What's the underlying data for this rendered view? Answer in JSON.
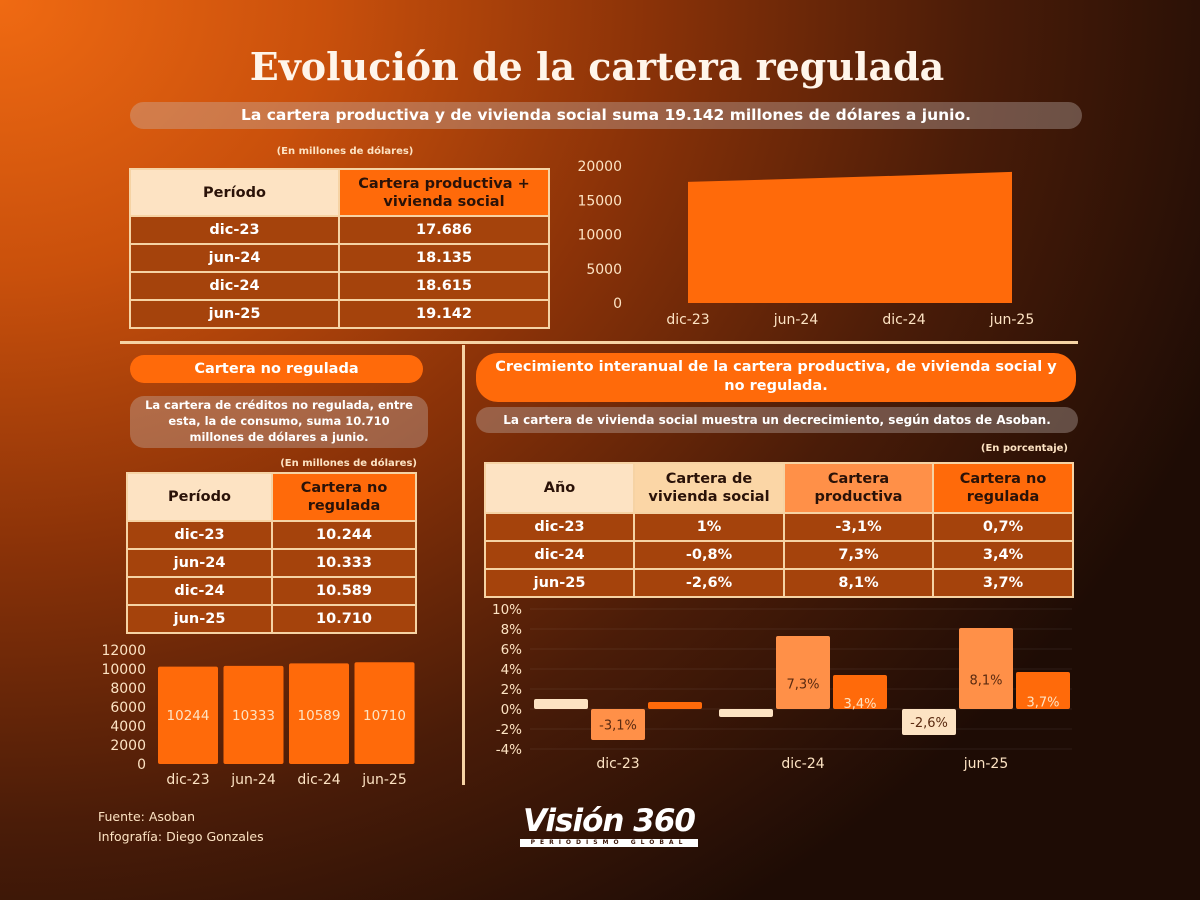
{
  "title": "Evolución de la cartera regulada",
  "subtitle": "La cartera productiva y de vivienda social suma 19.142 millones de dólares a junio.",
  "table1": {
    "note": "(En millones de dólares)",
    "headers": [
      "Período",
      "Cartera productiva + vivienda social"
    ],
    "rows": [
      [
        "dic-23",
        "17.686"
      ],
      [
        "jun-24",
        "18.135"
      ],
      [
        "dic-24",
        "18.615"
      ],
      [
        "jun-25",
        "19.142"
      ]
    ]
  },
  "no_regulada": {
    "pill": "Cartera no regulada",
    "text": "La cartera de créditos no regulada, entre esta, la de consumo, suma 10.710 millones de dólares a  junio.",
    "note": "(En millones de dólares)",
    "headers": [
      "Período",
      "Cartera no regulada"
    ],
    "rows": [
      [
        "dic-23",
        "10.244"
      ],
      [
        "jun-24",
        "10.333"
      ],
      [
        "dic-24",
        "10.589"
      ],
      [
        "jun-25",
        "10.710"
      ]
    ]
  },
  "growth": {
    "pill": "Crecimiento interanual de la cartera productiva, de vivienda social y no regulada.",
    "text": "La cartera de vivienda social muestra un decrecimiento, según datos de Asoban.",
    "note": "(En porcentaje)",
    "headers": [
      "Año",
      "Cartera de vivienda social",
      "Cartera productiva",
      "Cartera no regulada"
    ],
    "rows": [
      [
        "dic-23",
        "1%",
        "-3,1%",
        "0,7%"
      ],
      [
        "dic-24",
        "-0,8%",
        "7,3%",
        "3,4%"
      ],
      [
        "jun-25",
        "-2,6%",
        "8,1%",
        "3,7%"
      ]
    ]
  },
  "footer": {
    "source": "Fuente: Asoban",
    "credit": "Infografía: Diego Gonzales",
    "logo": "Visión 360",
    "logo_tag": "PERIODISMO GLOBAL"
  },
  "colors": {
    "accent": "#ff6a0a",
    "light": "#ff9048",
    "cream": "#fde3c3"
  },
  "chart_data": [
    {
      "type": "area",
      "categories": [
        "dic-23",
        "jun-24",
        "dic-24",
        "jun-25"
      ],
      "values": [
        17686,
        18135,
        18615,
        19142
      ],
      "ylim": [
        0,
        20000
      ],
      "yticks": [
        0,
        5000,
        10000,
        15000,
        20000
      ]
    },
    {
      "type": "bar",
      "categories": [
        "dic-23",
        "jun-24",
        "dic-24",
        "jun-25"
      ],
      "values": [
        10244,
        10333,
        10589,
        10710
      ],
      "data_labels": [
        "10244",
        "10333",
        "10589",
        "10710"
      ],
      "ylim": [
        0,
        12000
      ],
      "yticks": [
        0,
        2000,
        4000,
        6000,
        8000,
        10000,
        12000
      ]
    },
    {
      "type": "bar",
      "categories": [
        "dic-23",
        "dic-24",
        "jun-25"
      ],
      "ylim": [
        -4,
        10
      ],
      "yticks": [
        "-4%",
        "-2%",
        "0%",
        "2%",
        "4%",
        "6%",
        "8%",
        "10%"
      ],
      "series": [
        {
          "name": "Cartera de vivienda social",
          "values": [
            1,
            -0.8,
            -2.6
          ],
          "labels": [
            "",
            "",
            "-2,6%"
          ]
        },
        {
          "name": "Cartera productiva",
          "values": [
            -3.1,
            7.3,
            8.1
          ],
          "labels": [
            "-3,1%",
            "7,3%",
            "8,1%"
          ]
        },
        {
          "name": "Cartera no regulada",
          "values": [
            0.7,
            3.4,
            3.7
          ],
          "labels": [
            "",
            "3,4%",
            "3,7%"
          ]
        }
      ]
    }
  ]
}
